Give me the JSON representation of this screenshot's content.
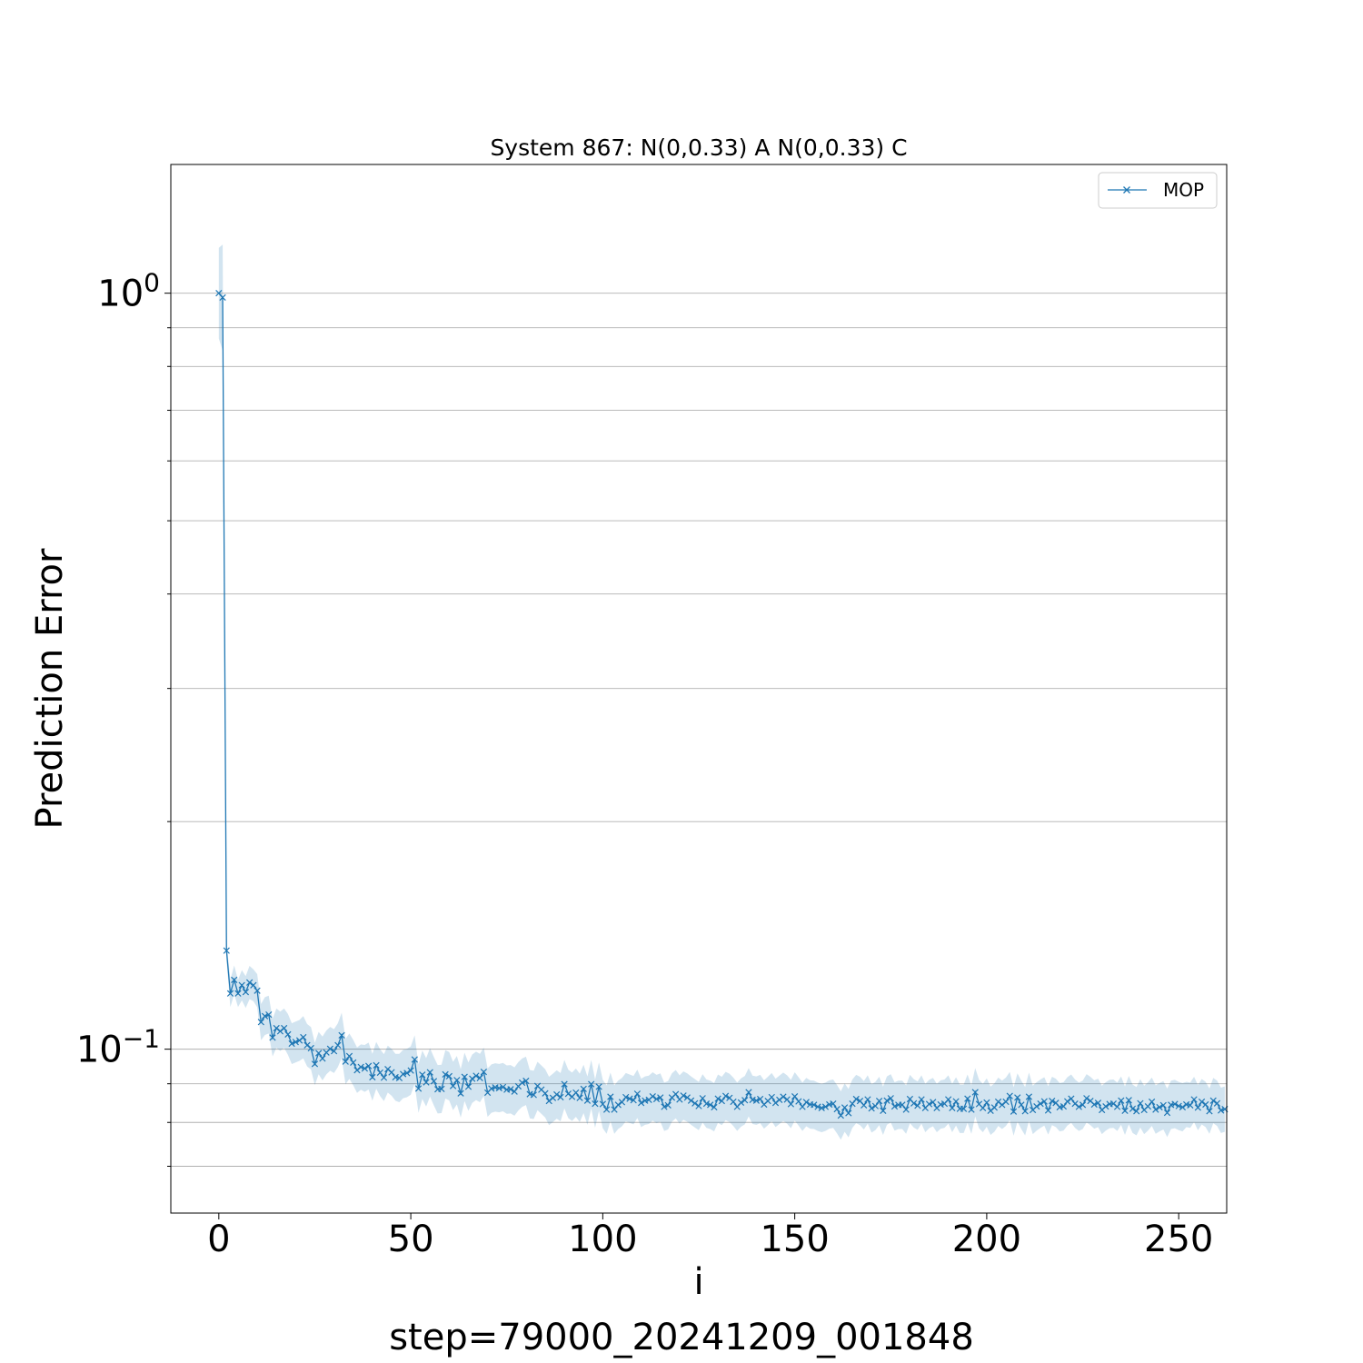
{
  "chart_data": {
    "type": "line",
    "title": "System 867: N(0,0.33) A N(0,0.33) C",
    "xlabel": "i",
    "ylabel": "Prediction Error",
    "footer": "step=79000_20241209_001848",
    "yscale": "log",
    "xlim": [
      -12.5,
      262.5
    ],
    "ylim": [
      0.0607,
      1.48
    ],
    "x_ticks": [
      0,
      50,
      100,
      150,
      200,
      250
    ],
    "x_tick_labels": [
      "0",
      "50",
      "100",
      "150",
      "200",
      "250"
    ],
    "y_ticks": [
      0.1,
      1.0
    ],
    "y_tick_labels": [
      {
        "base": "10",
        "exp": "−1"
      },
      {
        "base": "10",
        "exp": "0"
      }
    ],
    "grid": "y-major-and-minor",
    "legend_position": "top-right",
    "series": [
      {
        "name": "MOP",
        "color": "#1f77b4",
        "marker": "x",
        "values": [
          1.0,
          0.987,
          0.135,
          0.1185,
          0.1235,
          0.1185,
          0.1215,
          0.119,
          0.1225,
          0.1215,
          0.1195,
          0.1086,
          0.1106,
          0.1111,
          0.1036,
          0.1066,
          0.1056,
          0.1066,
          0.1046,
          0.1017,
          0.1022,
          0.1027,
          0.1037,
          0.1012,
          0.1003,
          0.0956,
          0.0988,
          0.0972,
          0.099,
          0.1001,
          0.0994,
          0.1012,
          0.1043,
          0.0963,
          0.0979,
          0.096,
          0.0938,
          0.0947,
          0.0943,
          0.095,
          0.0918,
          0.0952,
          0.0931,
          0.0917,
          0.0941,
          0.0932,
          0.0918,
          0.0916,
          0.0927,
          0.093,
          0.0937,
          0.0969,
          0.0887,
          0.0925,
          0.0904,
          0.0932,
          0.0907,
          0.0885,
          0.0886,
          0.0926,
          0.0921,
          0.0894,
          0.091,
          0.0874,
          0.0919,
          0.0892,
          0.0914,
          0.0922,
          0.0916,
          0.0933,
          0.0876,
          0.0887,
          0.089,
          0.0888,
          0.0891,
          0.0884,
          0.0885,
          0.0879,
          0.0893,
          0.0903,
          0.0908,
          0.0872,
          0.087,
          0.0894,
          0.0884,
          0.0874,
          0.0854,
          0.0862,
          0.0871,
          0.0864,
          0.0899,
          0.0873,
          0.0865,
          0.0876,
          0.0862,
          0.0886,
          0.0855,
          0.0899,
          0.0847,
          0.0892,
          0.0846,
          0.0832,
          0.0865,
          0.0832,
          0.0844,
          0.0851,
          0.0864,
          0.086,
          0.0856,
          0.0873,
          0.0849,
          0.0855,
          0.0857,
          0.0866,
          0.0859,
          0.0863,
          0.0839,
          0.0843,
          0.0863,
          0.0872,
          0.0858,
          0.0868,
          0.0863,
          0.0855,
          0.0848,
          0.0841,
          0.0861,
          0.0847,
          0.0844,
          0.0838,
          0.086,
          0.0854,
          0.0867,
          0.0862,
          0.0852,
          0.0839,
          0.085,
          0.0856,
          0.0877,
          0.0857,
          0.0855,
          0.0859,
          0.0845,
          0.0854,
          0.0864,
          0.0849,
          0.0857,
          0.0865,
          0.0858,
          0.0846,
          0.0866,
          0.0853,
          0.0839,
          0.0851,
          0.0845,
          0.0844,
          0.0839,
          0.0836,
          0.0839,
          0.0845,
          0.0847,
          0.0833,
          0.0817,
          0.0837,
          0.0823,
          0.0847,
          0.0859,
          0.0854,
          0.0843,
          0.0858,
          0.0835,
          0.0841,
          0.0854,
          0.0829,
          0.0855,
          0.0861,
          0.084,
          0.0844,
          0.0844,
          0.0832,
          0.0859,
          0.0848,
          0.0842,
          0.0858,
          0.0836,
          0.0846,
          0.0851,
          0.0836,
          0.0845,
          0.0847,
          0.0858,
          0.0836,
          0.0853,
          0.0834,
          0.0834,
          0.086,
          0.0832,
          0.0877,
          0.0846,
          0.0836,
          0.085,
          0.0829,
          0.0837,
          0.0852,
          0.0844,
          0.0852,
          0.0867,
          0.0827,
          0.0863,
          0.0844,
          0.0828,
          0.0865,
          0.0831,
          0.084,
          0.0847,
          0.0853,
          0.083,
          0.0854,
          0.0849,
          0.0838,
          0.084,
          0.0853,
          0.086,
          0.0847,
          0.0839,
          0.0844,
          0.0861,
          0.0854,
          0.0845,
          0.0849,
          0.0831,
          0.084,
          0.0846,
          0.0847,
          0.0839,
          0.0855,
          0.0829,
          0.0856,
          0.0834,
          0.0828,
          0.0848,
          0.0831,
          0.084,
          0.0852,
          0.0832,
          0.0838,
          0.0843,
          0.0824,
          0.0844,
          0.0846,
          0.0841,
          0.0838,
          0.0845,
          0.0843,
          0.0858,
          0.0837,
          0.0852,
          0.0845,
          0.0828,
          0.0855,
          0.0848,
          0.083,
          0.0833
        ],
        "band_halfwidth_log10": [
          0.06,
          0.07,
          0.012,
          0.018,
          0.019,
          0.018,
          0.02,
          0.021,
          0.022,
          0.021,
          0.022,
          0.024,
          0.025,
          0.025,
          0.025,
          0.026,
          0.026,
          0.026,
          0.027,
          0.027,
          0.027,
          0.027,
          0.028,
          0.028,
          0.028,
          0.028,
          0.028,
          0.029,
          0.029,
          0.029,
          0.029,
          0.029,
          0.03,
          0.03,
          0.03,
          0.03,
          0.03,
          0.03,
          0.031,
          0.031,
          0.031,
          0.031,
          0.031,
          0.031,
          0.031,
          0.031,
          0.031,
          0.032,
          0.032,
          0.032,
          0.032,
          0.032,
          0.032,
          0.032,
          0.032,
          0.032,
          0.032,
          0.032,
          0.032,
          0.032,
          0.032,
          0.032,
          0.032,
          0.032,
          0.032,
          0.032,
          0.032,
          0.032,
          0.032,
          0.032,
          0.032,
          0.032,
          0.032,
          0.032,
          0.032,
          0.032,
          0.032,
          0.032,
          0.032,
          0.032,
          0.032,
          0.032,
          0.032,
          0.032,
          0.032,
          0.032,
          0.032,
          0.032,
          0.032,
          0.032,
          0.032,
          0.032,
          0.032,
          0.032,
          0.032,
          0.032,
          0.032,
          0.032,
          0.032,
          0.032,
          0.032,
          0.032,
          0.032,
          0.032,
          0.032,
          0.032,
          0.032,
          0.032,
          0.032,
          0.032,
          0.032,
          0.032,
          0.032,
          0.032,
          0.032,
          0.032,
          0.032,
          0.032,
          0.032,
          0.032,
          0.032,
          0.032,
          0.032,
          0.032,
          0.032,
          0.032,
          0.032,
          0.032,
          0.032,
          0.032,
          0.032,
          0.032,
          0.032,
          0.032,
          0.032,
          0.032,
          0.032,
          0.032,
          0.032,
          0.032,
          0.032,
          0.032,
          0.032,
          0.032,
          0.032,
          0.032,
          0.032,
          0.032,
          0.032,
          0.032,
          0.032,
          0.032,
          0.032,
          0.032,
          0.032,
          0.032,
          0.032,
          0.032,
          0.032,
          0.032,
          0.032,
          0.032,
          0.032,
          0.032,
          0.032,
          0.032,
          0.032,
          0.032,
          0.032,
          0.032,
          0.032,
          0.032,
          0.032,
          0.032,
          0.032,
          0.032,
          0.032,
          0.032,
          0.032,
          0.032,
          0.032,
          0.032,
          0.032,
          0.032,
          0.032,
          0.032,
          0.032,
          0.032,
          0.032,
          0.032,
          0.032,
          0.032,
          0.032,
          0.032,
          0.032,
          0.032,
          0.032,
          0.032,
          0.032,
          0.032,
          0.032,
          0.032,
          0.032,
          0.032,
          0.032,
          0.032,
          0.032,
          0.032,
          0.032,
          0.032,
          0.032,
          0.032,
          0.032,
          0.032,
          0.032,
          0.032,
          0.032,
          0.032,
          0.032,
          0.032,
          0.032,
          0.032,
          0.032,
          0.032,
          0.032,
          0.032,
          0.032,
          0.032,
          0.032,
          0.032,
          0.032,
          0.032,
          0.032,
          0.032,
          0.032,
          0.032,
          0.032,
          0.032,
          0.032,
          0.032,
          0.032,
          0.032,
          0.032,
          0.032,
          0.032,
          0.032,
          0.032,
          0.032,
          0.032,
          0.032,
          0.032,
          0.032
        ]
      }
    ]
  }
}
